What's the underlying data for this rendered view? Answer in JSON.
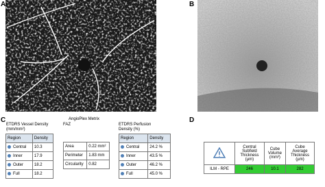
{
  "panels": {
    "a": {
      "label": "A"
    },
    "b": {
      "label": "B"
    },
    "c": {
      "label": "C",
      "title": "AngioPlex Metrix",
      "vessel": {
        "title": "ETDRS Vessel Density (mm/mm²)",
        "header": [
          "Region",
          "Density"
        ],
        "rows": [
          [
            "Central",
            "10.3"
          ],
          [
            "Inner",
            "17.9"
          ],
          [
            "Outer",
            "18.2"
          ],
          [
            "Full",
            "18.2"
          ]
        ]
      },
      "faz": {
        "title": "FAZ",
        "rows": [
          [
            "Area",
            "0.22 mm²"
          ],
          [
            "Perimeter",
            "1.83 mm"
          ],
          [
            "Circularity",
            "0.82"
          ]
        ]
      },
      "perfusion": {
        "title": "ETDRS Perfusion Density (%)",
        "header": [
          "Region",
          "Density"
        ],
        "rows": [
          [
            "Central",
            "24.2 %"
          ],
          [
            "Inner",
            "43.5 %"
          ],
          [
            "Outer",
            "46.2 %"
          ],
          [
            "Full",
            "45.0 %"
          ]
        ]
      }
    },
    "d": {
      "label": "D",
      "header": [
        "Central Subfield Thickness (µm)",
        "Cube Volume (mm³)",
        "Cube Average Thickness (µm)"
      ],
      "row": [
        "ILM - RPE",
        "246",
        "10.1",
        "282"
      ]
    }
  }
}
